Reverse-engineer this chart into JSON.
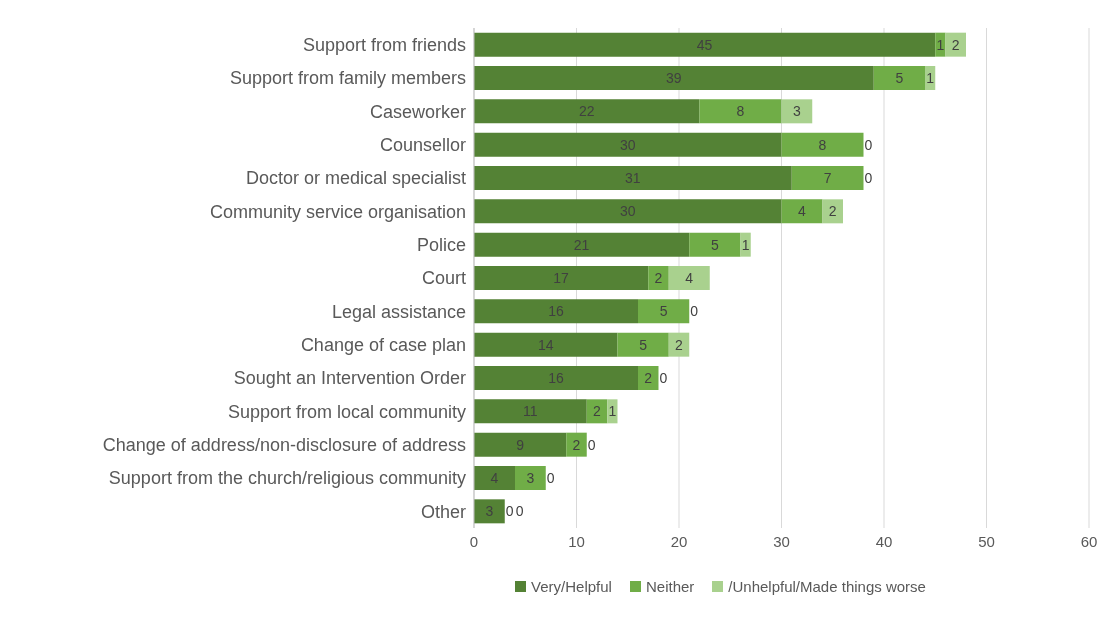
{
  "chart_data": {
    "type": "bar",
    "orientation": "horizontal",
    "stacked": true,
    "data_labels": true,
    "grid": "x",
    "legend": "bottom",
    "categories": [
      "Support from friends",
      "Support from family members",
      "Caseworker",
      "Counsellor",
      "Doctor or medical specialist",
      "Community service organisation",
      "Police",
      "Court",
      "Legal assistance",
      "Change of case plan",
      "Sought an Intervention Order",
      "Support from local community",
      "Change of address/non-disclosure of address",
      "Support from the church/religious community",
      "Other"
    ],
    "series": [
      {
        "name": "Very/Helpful",
        "color": "#548235",
        "values": [
          45,
          39,
          22,
          30,
          31,
          30,
          21,
          17,
          16,
          14,
          16,
          11,
          9,
          4,
          3
        ]
      },
      {
        "name": "Neither",
        "color": "#70ad47",
        "values": [
          1,
          5,
          8,
          8,
          7,
          4,
          5,
          2,
          5,
          5,
          2,
          2,
          2,
          3,
          0
        ]
      },
      {
        "name": "/Unhelpful/Made things worse",
        "color": "#a9d18e",
        "values": [
          2,
          1,
          3,
          0,
          0,
          2,
          1,
          4,
          0,
          2,
          0,
          1,
          0,
          0,
          0
        ]
      }
    ],
    "xlim": [
      0,
      60
    ],
    "xticks": [
      0,
      10,
      20,
      30,
      40,
      50,
      60
    ]
  }
}
